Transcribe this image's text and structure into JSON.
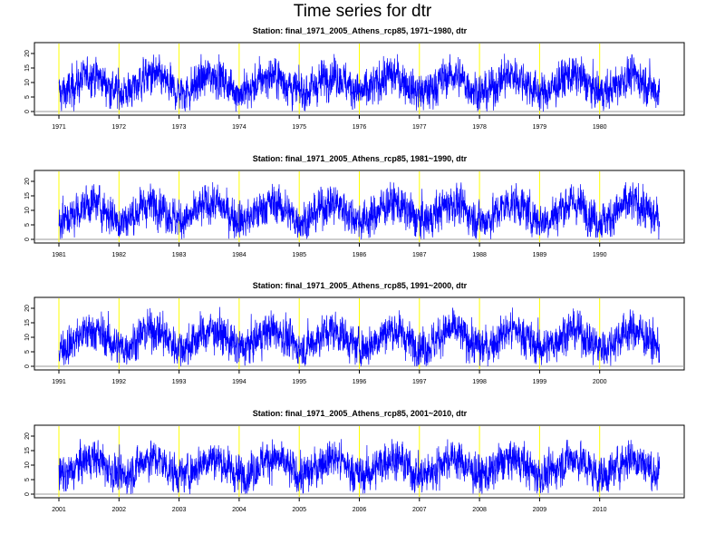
{
  "title": "Time series for dtr",
  "colors": {
    "series": "#0000ff",
    "year_marker": "#ffff00",
    "zero_line": "#999999",
    "frame": "#000000"
  },
  "chart_data": [
    {
      "type": "line",
      "title": "Station: final_1971_2005_Athens_rcp85, 1971~1980,  dtr",
      "xlabel": "",
      "ylabel": "",
      "x_ticks": [
        "1971",
        "1972",
        "1973",
        "1974",
        "1975",
        "1976",
        "1977",
        "1978",
        "1979",
        "1980"
      ],
      "y_ticks": [
        "0",
        "5",
        "10",
        "15",
        "20"
      ],
      "ylim": [
        0,
        22
      ],
      "xlim": [
        1971,
        1981
      ],
      "year_markers": [
        1971,
        1972,
        1973,
        1974,
        1975,
        1976,
        1977,
        1978,
        1979,
        1980
      ],
      "zero_line": 0,
      "grid": false,
      "series": [
        {
          "annual_mean": 9.5,
          "seasonal_amplitude": 3,
          "daily_noise": 3,
          "range": [
            0,
            20
          ]
        }
      ]
    },
    {
      "type": "line",
      "title": "Station: final_1971_2005_Athens_rcp85, 1981~1990,  dtr",
      "xlabel": "",
      "ylabel": "",
      "x_ticks": [
        "1981",
        "1982",
        "1983",
        "1984",
        "1985",
        "1986",
        "1987",
        "1988",
        "1989",
        "1990"
      ],
      "y_ticks": [
        "0",
        "5",
        "10",
        "15",
        "20"
      ],
      "ylim": [
        0,
        22
      ],
      "xlim": [
        1981,
        1991
      ],
      "year_markers": [
        1981,
        1982,
        1983,
        1984,
        1985,
        1986,
        1987,
        1988,
        1989,
        1990
      ],
      "zero_line": 0,
      "grid": false,
      "series": [
        {
          "annual_mean": 9.5,
          "seasonal_amplitude": 3,
          "daily_noise": 3,
          "range": [
            0,
            20
          ]
        }
      ]
    },
    {
      "type": "line",
      "title": "Station: final_1971_2005_Athens_rcp85, 1991~2000,  dtr",
      "xlabel": "",
      "ylabel": "",
      "x_ticks": [
        "1991",
        "1992",
        "1993",
        "1994",
        "1995",
        "1996",
        "1997",
        "1998",
        "1999",
        "2000"
      ],
      "y_ticks": [
        "0",
        "5",
        "10",
        "15",
        "20"
      ],
      "ylim": [
        0,
        22
      ],
      "xlim": [
        1991,
        2001
      ],
      "year_markers": [
        1991,
        1992,
        1993,
        1994,
        1995,
        1996,
        1997,
        1998,
        1999,
        2000
      ],
      "zero_line": 0,
      "grid": false,
      "series": [
        {
          "annual_mean": 9.5,
          "seasonal_amplitude": 3,
          "daily_noise": 3,
          "range": [
            0,
            21
          ]
        }
      ]
    },
    {
      "type": "line",
      "title": "Station: final_1971_2005_Athens_rcp85, 2001~2010,  dtr",
      "xlabel": "",
      "ylabel": "",
      "x_ticks": [
        "2001",
        "2002",
        "2003",
        "2004",
        "2005",
        "2006",
        "2007",
        "2008",
        "2009",
        "2010"
      ],
      "y_ticks": [
        "0",
        "5",
        "10",
        "15",
        "20"
      ],
      "ylim": [
        0,
        22
      ],
      "xlim": [
        2001,
        2011
      ],
      "year_markers": [
        2001,
        2002,
        2003,
        2004,
        2005,
        2006,
        2007,
        2008,
        2009,
        2010
      ],
      "zero_line": 0,
      "grid": false,
      "series": [
        {
          "annual_mean": 9.5,
          "seasonal_amplitude": 3,
          "daily_noise": 3,
          "range": [
            0,
            19
          ]
        }
      ]
    }
  ]
}
